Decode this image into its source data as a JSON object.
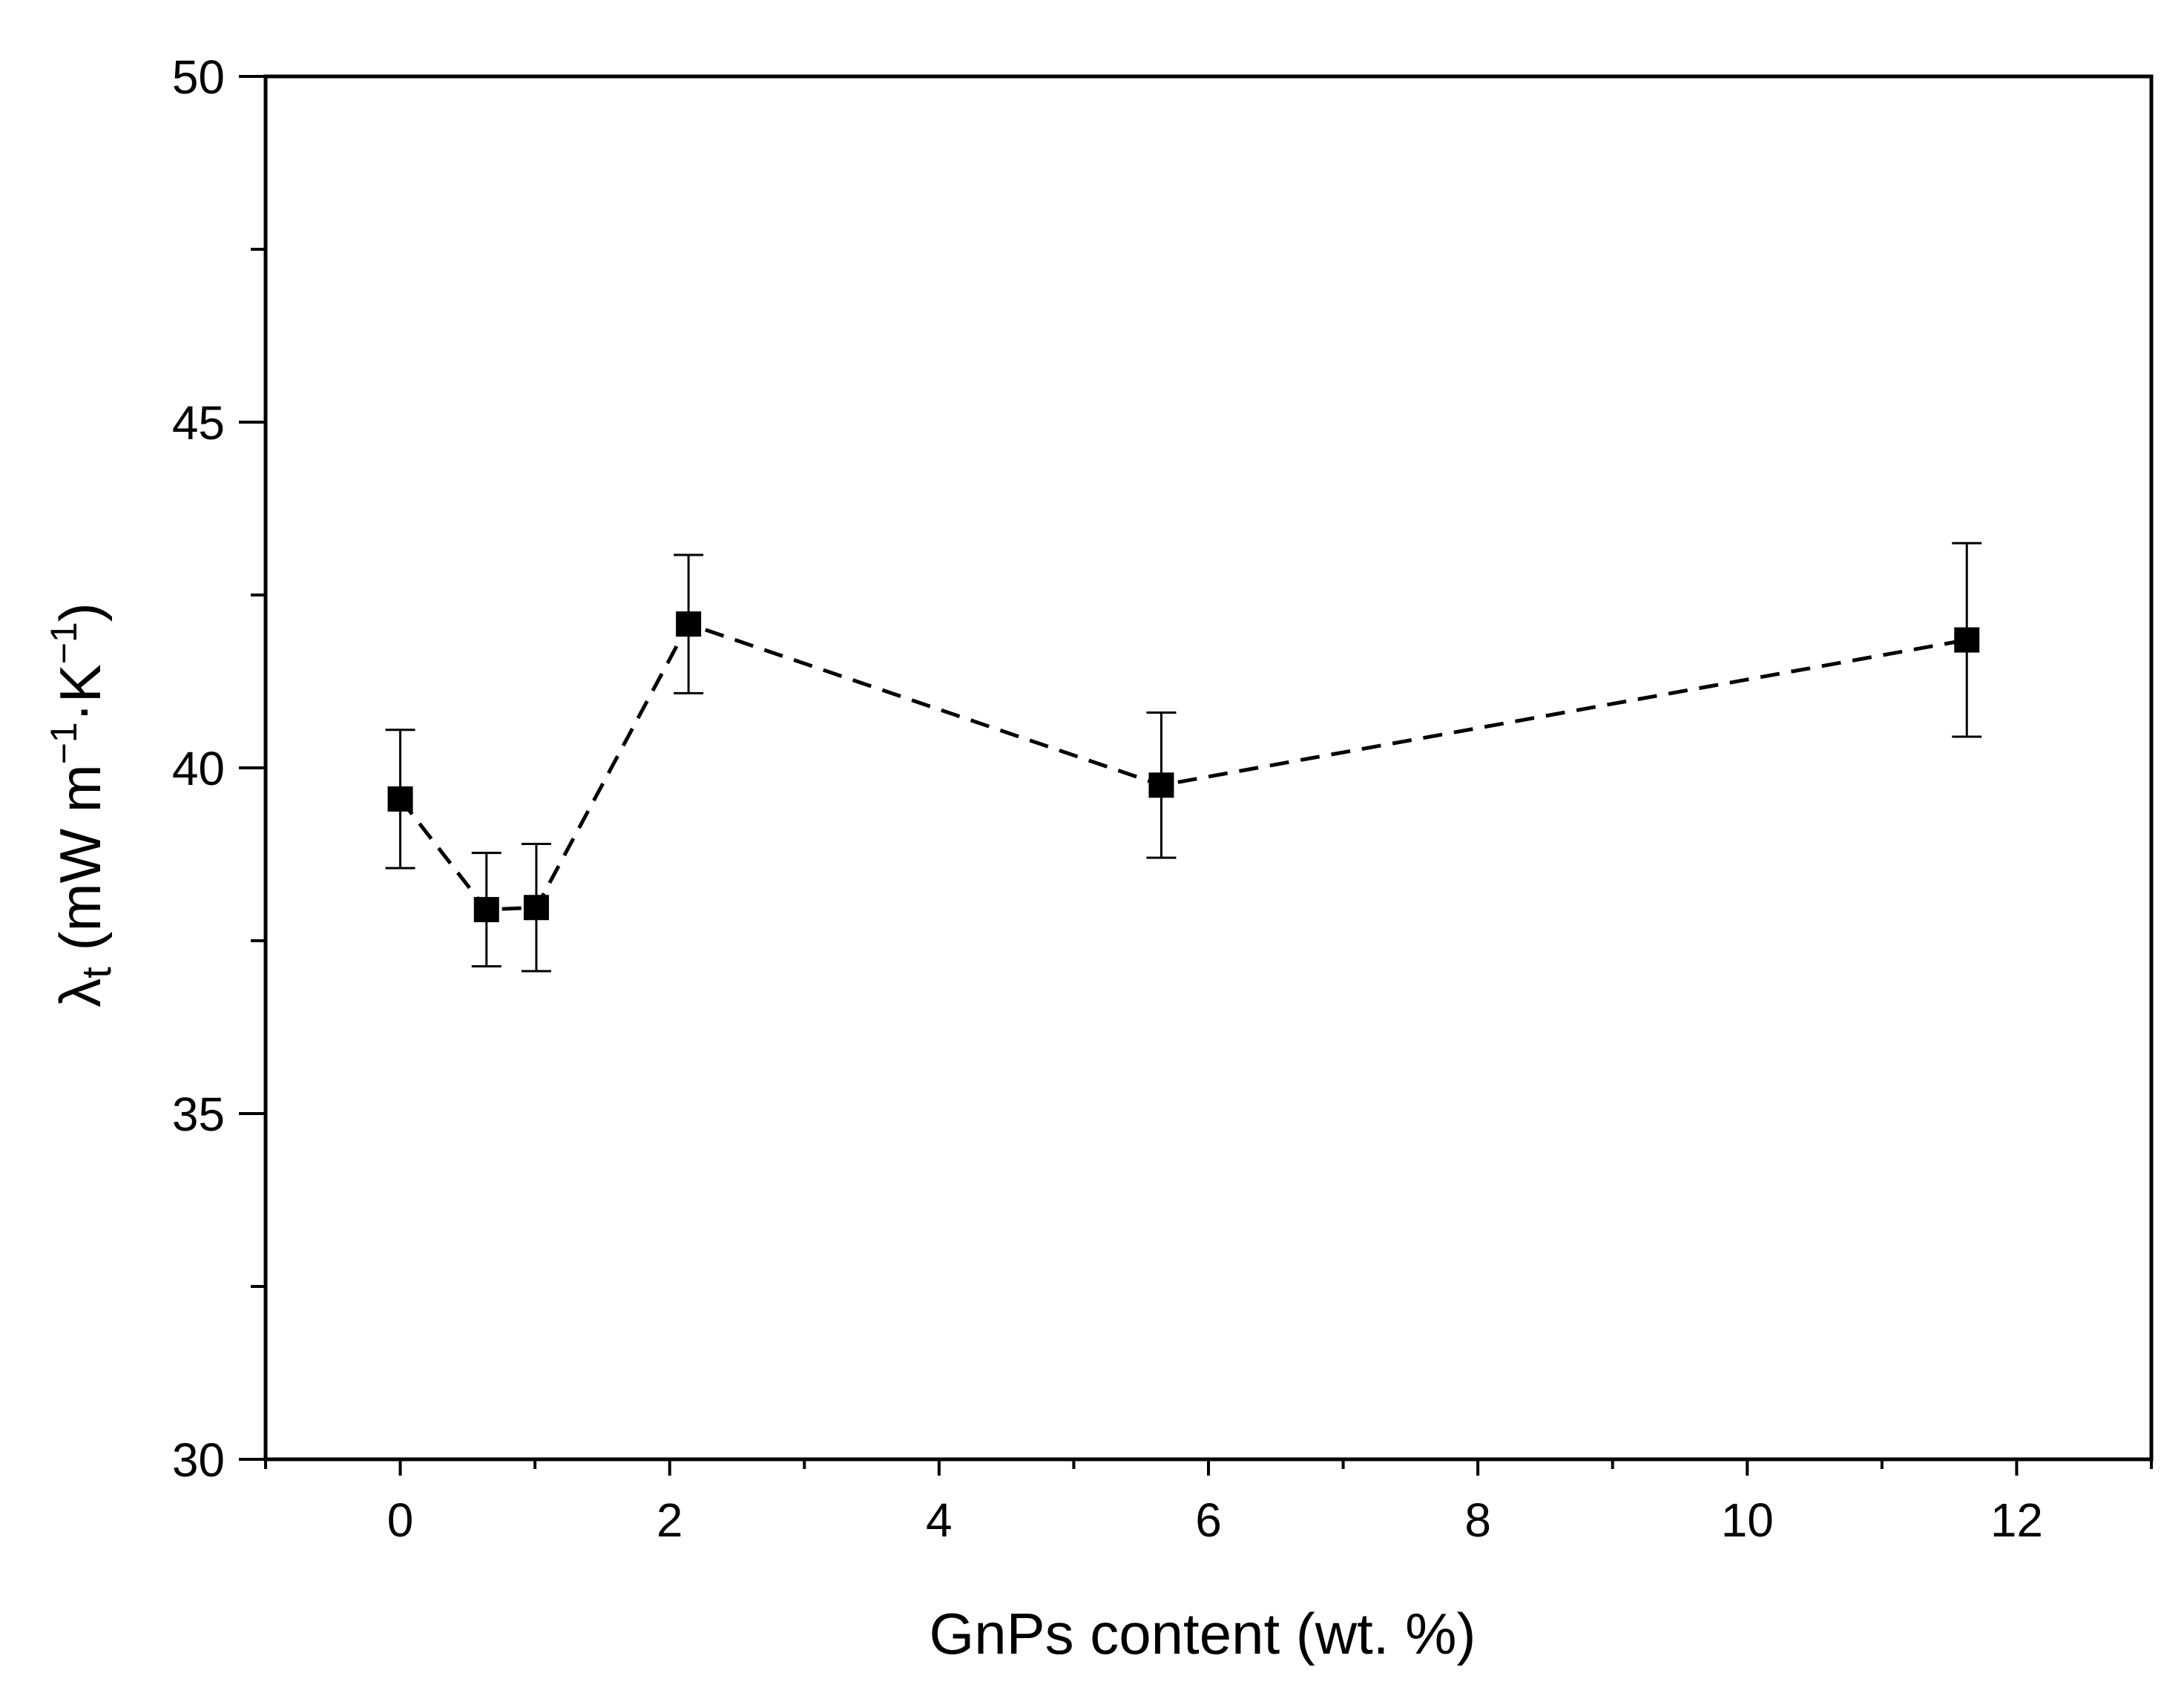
{
  "chart_data": {
    "type": "scatter",
    "title": "",
    "xlabel": "GnPs content (wt. %)",
    "ylabel": {
      "symbol": "λ",
      "subscript": "t",
      "open": " (mW m",
      "sup1": "−1",
      "mid": "·K",
      "sup2": "−1",
      "close": ")"
    },
    "xlim": [
      -1,
      13
    ],
    "ylim": [
      30,
      50
    ],
    "x_ticks": [
      0,
      2,
      4,
      6,
      8,
      10,
      12
    ],
    "x_minor_ticks": [
      -1,
      1,
      3,
      5,
      7,
      9,
      11,
      13
    ],
    "y_ticks": [
      30,
      35,
      40,
      45,
      50
    ],
    "y_minor_ticks": [
      32.5,
      37.5,
      42.5,
      47.5
    ],
    "grid": false,
    "legend": "none",
    "line_style": "dashed",
    "marker": "filled-square",
    "color": "#000000",
    "series": [
      {
        "x": [
          0,
          0.64,
          1.01,
          2.14,
          5.65,
          11.63
        ],
        "y": [
          39.55,
          37.95,
          37.98,
          42.08,
          39.75,
          41.85
        ],
        "yerr": [
          1.0,
          0.82,
          0.92,
          1.0,
          1.05,
          1.4
        ]
      }
    ]
  }
}
